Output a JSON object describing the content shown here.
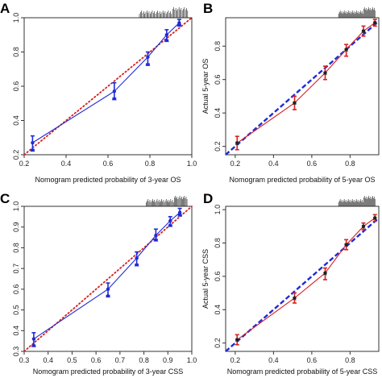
{
  "chart_data": [
    {
      "type": "line",
      "panel_label": "A",
      "xlabel": "Nomogram predicted probability of 3-year OS",
      "ylabel": "",
      "xlim": [
        0.2,
        1.0
      ],
      "ylim": [
        0.2,
        1.0
      ],
      "xticks": [
        "0.2",
        "0.4",
        "0.6",
        "0.8",
        "1.0"
      ],
      "yticks": [
        "0.2",
        "0.4",
        "0.6",
        "0.8",
        "1.0"
      ],
      "ideal_color": "#d62020",
      "ideal_style": "dotted",
      "colors": {
        "series": "#1f2bd6",
        "error": "#1f2bd6",
        "marker": "#1f2bd6"
      },
      "points": [
        {
          "x": 0.24,
          "y": 0.27,
          "lo": 0.23,
          "hi": 0.31,
          "xm": 0.24,
          "ym": 0.23
        },
        {
          "x": 0.63,
          "y": 0.57,
          "lo": 0.53,
          "hi": 0.62,
          "xm": 0.63,
          "ym": 0.53
        },
        {
          "x": 0.79,
          "y": 0.77,
          "lo": 0.73,
          "hi": 0.8,
          "xm": 0.79,
          "ym": 0.73
        },
        {
          "x": 0.88,
          "y": 0.9,
          "lo": 0.87,
          "hi": 0.93,
          "xm": 0.88,
          "ym": 0.87
        },
        {
          "x": 0.94,
          "y": 0.97,
          "lo": 0.96,
          "hi": 0.99,
          "xm": 0.94,
          "ym": 0.96
        }
      ]
    },
    {
      "type": "line",
      "panel_label": "B",
      "xlabel": "Nomogram predicted probability of 5-year OS",
      "ylabel": "Actual 5-year OS",
      "xlim": [
        0.15,
        0.95
      ],
      "ylim": [
        0.15,
        0.97
      ],
      "xticks": [
        "0.2",
        "0.4",
        "0.6",
        "0.8"
      ],
      "yticks": [
        "0.2",
        "0.4",
        "0.6",
        "0.8"
      ],
      "ideal_color": "#1f2bd6",
      "ideal_style": "dashed",
      "colors": {
        "series": "#d62020",
        "error": "#d62020",
        "marker": "#222222"
      },
      "points": [
        {
          "x": 0.21,
          "y": 0.22,
          "lo": 0.18,
          "hi": 0.26
        },
        {
          "x": 0.51,
          "y": 0.46,
          "lo": 0.42,
          "hi": 0.5
        },
        {
          "x": 0.67,
          "y": 0.64,
          "lo": 0.6,
          "hi": 0.68
        },
        {
          "x": 0.78,
          "y": 0.78,
          "lo": 0.74,
          "hi": 0.81
        },
        {
          "x": 0.87,
          "y": 0.89,
          "lo": 0.86,
          "hi": 0.92
        },
        {
          "x": 0.93,
          "y": 0.94,
          "lo": 0.92,
          "hi": 0.96
        }
      ]
    },
    {
      "type": "line",
      "panel_label": "C",
      "xlabel": "Nomogram predicted probability of 3-year CSS",
      "ylabel": "",
      "xlim": [
        0.3,
        1.0
      ],
      "ylim": [
        0.3,
        1.0
      ],
      "xticks": [
        "0.3",
        "0.4",
        "0.5",
        "0.6",
        "0.7",
        "0.8",
        "0.9",
        "1.0"
      ],
      "yticks": [
        "0.3",
        "0.4",
        "0.5",
        "0.6",
        "0.7",
        "0.8",
        "0.9",
        "1.0"
      ],
      "ideal_color": "#d62020",
      "ideal_style": "dotted",
      "colors": {
        "series": "#1f2bd6",
        "error": "#1f2bd6",
        "marker": "#1f2bd6"
      },
      "points": [
        {
          "x": 0.34,
          "y": 0.36,
          "lo": 0.33,
          "hi": 0.39,
          "xm": 0.34,
          "ym": 0.33
        },
        {
          "x": 0.65,
          "y": 0.6,
          "lo": 0.57,
          "hi": 0.63,
          "xm": 0.65,
          "ym": 0.57
        },
        {
          "x": 0.77,
          "y": 0.75,
          "lo": 0.72,
          "hi": 0.78,
          "xm": 0.77,
          "ym": 0.72
        },
        {
          "x": 0.85,
          "y": 0.86,
          "lo": 0.84,
          "hi": 0.89,
          "xm": 0.85,
          "ym": 0.84
        },
        {
          "x": 0.91,
          "y": 0.93,
          "lo": 0.91,
          "hi": 0.95,
          "xm": 0.91,
          "ym": 0.91
        },
        {
          "x": 0.95,
          "y": 0.97,
          "lo": 0.96,
          "hi": 0.99,
          "xm": 0.95,
          "ym": 0.96
        }
      ]
    },
    {
      "type": "line",
      "panel_label": "D",
      "xlabel": "Nomogram predicted probability of 5-year CSS",
      "ylabel": "Actual 5-year CSS",
      "xlim": [
        0.15,
        0.95
      ],
      "ylim": [
        0.15,
        1.02
      ],
      "xticks": [
        "0.2",
        "0.4",
        "0.6",
        "0.8"
      ],
      "yticks": [
        "0.2",
        "0.4",
        "0.6",
        "0.8",
        "1.0"
      ],
      "ideal_color": "#1f2bd6",
      "ideal_style": "dashed",
      "colors": {
        "series": "#d62020",
        "error": "#d62020",
        "marker": "#222222"
      },
      "points": [
        {
          "x": 0.21,
          "y": 0.22,
          "lo": 0.19,
          "hi": 0.25
        },
        {
          "x": 0.51,
          "y": 0.47,
          "lo": 0.44,
          "hi": 0.5
        },
        {
          "x": 0.67,
          "y": 0.62,
          "lo": 0.58,
          "hi": 0.65
        },
        {
          "x": 0.78,
          "y": 0.79,
          "lo": 0.76,
          "hi": 0.82
        },
        {
          "x": 0.87,
          "y": 0.9,
          "lo": 0.88,
          "hi": 0.92
        },
        {
          "x": 0.93,
          "y": 0.95,
          "lo": 0.93,
          "hi": 0.97
        }
      ]
    }
  ]
}
